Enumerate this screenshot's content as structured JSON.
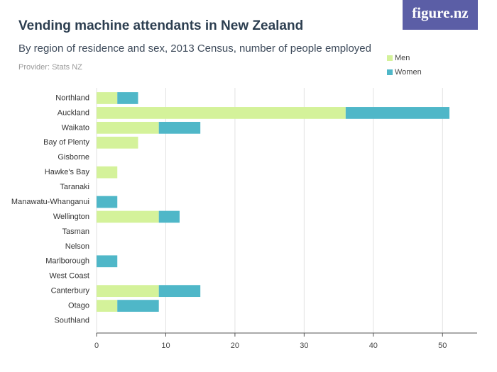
{
  "logo": "figure.nz",
  "chart_data": {
    "type": "stacked-barh",
    "title": "Vending machine attendants in New Zealand",
    "subtitle": "By region of residence and sex, 2013 Census, number of people employed",
    "provider": "Provider: Stats NZ",
    "categories": [
      "Northland",
      "Auckland",
      "Waikato",
      "Bay of Plenty",
      "Gisborne",
      "Hawke's Bay",
      "Taranaki",
      "Manawatu-Whanganui",
      "Wellington",
      "Tasman",
      "Nelson",
      "Marlborough",
      "West Coast",
      "Canterbury",
      "Otago",
      "Southland"
    ],
    "series": [
      {
        "name": "Men",
        "color": "#d4f29a",
        "values": [
          3,
          36,
          9,
          6,
          0,
          3,
          0,
          0,
          9,
          0,
          0,
          0,
          0,
          9,
          3,
          0
        ]
      },
      {
        "name": "Women",
        "color": "#4fb7c8",
        "values": [
          3,
          15,
          6,
          0,
          0,
          0,
          0,
          3,
          3,
          0,
          0,
          3,
          0,
          6,
          6,
          0
        ]
      }
    ],
    "xlim": [
      0,
      55
    ],
    "xticks": [
      0,
      10,
      20,
      30,
      40,
      50
    ],
    "grid": true,
    "legend": "top-right"
  }
}
